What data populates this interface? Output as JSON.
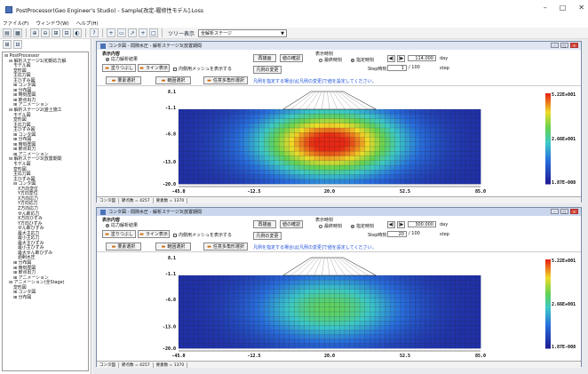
{
  "window": {
    "title": "PostProcessor(Geo Engineer's Studio) - Sample[改定-履修性モデル].Loss",
    "min": "–",
    "max": "□",
    "close": "✕"
  },
  "menu": [
    "ファイル(F)",
    "ウィンドウ(W)",
    "ヘルプ(H)"
  ],
  "toolbar": {
    "view_label": "ツリー表示",
    "stage_combo": "全解析ステージ",
    "icons": [
      "open-icon",
      "save-icon",
      "zoom-in-icon",
      "zoom-out-icon",
      "grid-icon",
      "table-icon",
      "contour-icon",
      "help-icon",
      "cross-icon",
      "window-icon",
      "arrow-icon",
      "plus-icon",
      "rect-icon"
    ]
  },
  "tree": [
    {
      "d": 0,
      "t": "⊟ PostProcessor"
    },
    {
      "d": 1,
      "t": "⊟ 解析ステージ1(初期応力解"
    },
    {
      "d": 2,
      "t": "モデル図"
    },
    {
      "d": 2,
      "t": "変形図"
    },
    {
      "d": 2,
      "t": "主応力図"
    },
    {
      "d": 2,
      "t": "主ひずみ図"
    },
    {
      "d": 2,
      "t": "⊞ コンタ図"
    },
    {
      "d": 2,
      "t": "⊞ 分布図"
    },
    {
      "d": 2,
      "t": "⊞ 時刻歴図"
    },
    {
      "d": 2,
      "t": "⊞ 節点出力"
    },
    {
      "d": 2,
      "t": "⊞ アニメーション"
    },
    {
      "d": 1,
      "t": "⊟ 解析ステージ2(盛土施工"
    },
    {
      "d": 2,
      "t": "モデル図"
    },
    {
      "d": 2,
      "t": "変形図"
    },
    {
      "d": 2,
      "t": "主応力図"
    },
    {
      "d": 2,
      "t": "主ひずみ図"
    },
    {
      "d": 2,
      "t": "⊞ コンタ図"
    },
    {
      "d": 2,
      "t": "⊞ 分布図"
    },
    {
      "d": 2,
      "t": "⊞ 時刻歴図"
    },
    {
      "d": 2,
      "t": "⊞ 節点出力"
    },
    {
      "d": 2,
      "t": "⊞ アニメーション"
    },
    {
      "d": 1,
      "t": "⊟ 解析ステージ3(放置期間"
    },
    {
      "d": 2,
      "t": "モデル図"
    },
    {
      "d": 2,
      "t": "変形図"
    },
    {
      "d": 2,
      "t": "主応力図"
    },
    {
      "d": 2,
      "t": "主ひずみ図"
    },
    {
      "d": 2,
      "t": "⊟ コンタ図"
    },
    {
      "d": 3,
      "t": "X方向変位"
    },
    {
      "d": 3,
      "t": "Y方向変位"
    },
    {
      "d": 3,
      "t": "X方向応力"
    },
    {
      "d": 3,
      "t": "Y方向応力"
    },
    {
      "d": 3,
      "t": "Z方向応力"
    },
    {
      "d": 3,
      "t": "せん断応力"
    },
    {
      "d": 3,
      "t": "X方向ひずみ"
    },
    {
      "d": 3,
      "t": "Y方向ひずみ"
    },
    {
      "d": 3,
      "t": "せん断ひずみ"
    },
    {
      "d": 3,
      "t": "最大主応力"
    },
    {
      "d": 3,
      "t": "最小主応力"
    },
    {
      "d": 3,
      "t": "最大主ひずみ"
    },
    {
      "d": 3,
      "t": "最小主ひずみ"
    },
    {
      "d": 3,
      "t": "最大せん断ひずみ"
    },
    {
      "d": 3,
      "t": "過剰水圧"
    },
    {
      "d": 2,
      "t": "⊞ 分布図"
    },
    {
      "d": 2,
      "t": "⊞ 時刻歴図"
    },
    {
      "d": 2,
      "t": "⊞ 節点出力"
    },
    {
      "d": 2,
      "t": "⊞ アニメーション"
    },
    {
      "d": 1,
      "t": "⊟ アニメーション(全Stage)"
    },
    {
      "d": 2,
      "t": "変形図"
    },
    {
      "d": 2,
      "t": "⊞ コンタ図"
    },
    {
      "d": 2,
      "t": "⊞ 分布図"
    }
  ],
  "panels": [
    {
      "title": "コンタ図 - 間隙水圧 - 解析ステージ3(放置期間",
      "display_group": "表示内容",
      "radio_label": "応力解析結果",
      "btn_fill": "塗りつぶし",
      "btn_line": "ライン表示",
      "chk_mesh": "内側用メッシュを表示する",
      "btn_redraw": "再描画",
      "btn_check": "値の確認",
      "btn_legend": "凡例の変更",
      "time_group": "表示時刻",
      "radio_final": "最終時刻",
      "radio_specified": "指定時刻",
      "time_value": "114.000",
      "time_unit": "day",
      "step_label": "Step時刻",
      "step_value": "1",
      "step_total": "/ 100",
      "step_unit": "step",
      "btn_region": "要素選択",
      "btn_range": "範囲選択",
      "btn_any": "任意多角形選択",
      "note": "凡例を指定する場合は[凡例の変更]で値を設定してください。",
      "status": [
        "コンタ図",
        "節点数 = 4257",
        "要素数 = 1370"
      ],
      "legend": [
        "5.22E+001",
        "2.66E+001",
        "1.87E-008"
      ],
      "yticks": [
        "8.1",
        "-1.1",
        "-6.8",
        "-13.0",
        "-20.0"
      ],
      "xticks": [
        "-45.0",
        "-12.5",
        "20.0",
        "52.5",
        "85.0"
      ],
      "peak": 1.0
    },
    {
      "title": "コンタ図 - 間隙水圧 - 解析ステージ3(放置期間",
      "display_group": "表示内容",
      "radio_label": "応力解析結果",
      "btn_fill": "塗りつぶし",
      "btn_line": "ライン表示",
      "chk_mesh": "内側用メッシュを表示する",
      "btn_redraw": "再描画",
      "btn_check": "値の確認",
      "btn_legend": "凡例の変更",
      "time_group": "表示時刻",
      "radio_final": "最終時刻",
      "radio_specified": "指定時刻",
      "time_value": "300.000",
      "time_unit": "day",
      "step_label": "Step時刻",
      "step_value": "20",
      "step_total": "/ 100",
      "step_unit": "step",
      "btn_region": "要素選択",
      "btn_range": "範囲選択",
      "btn_any": "任意多角形選択",
      "note": "凡例を指定する場合は[凡例の変更]で値を設定してください。",
      "status": [
        "コンタ図",
        "節点数 = 4257",
        "要素数 = 1370"
      ],
      "legend": [
        "5.22E+001",
        "2.66E+001",
        "1.87E-008"
      ],
      "yticks": [
        "8.1",
        "-1.1",
        "-6.8",
        "-13.0",
        "-20.0"
      ],
      "xticks": [
        "-45.0",
        "-12.5",
        "20.0",
        "52.5",
        "85.0"
      ],
      "peak": 0.55
    }
  ]
}
